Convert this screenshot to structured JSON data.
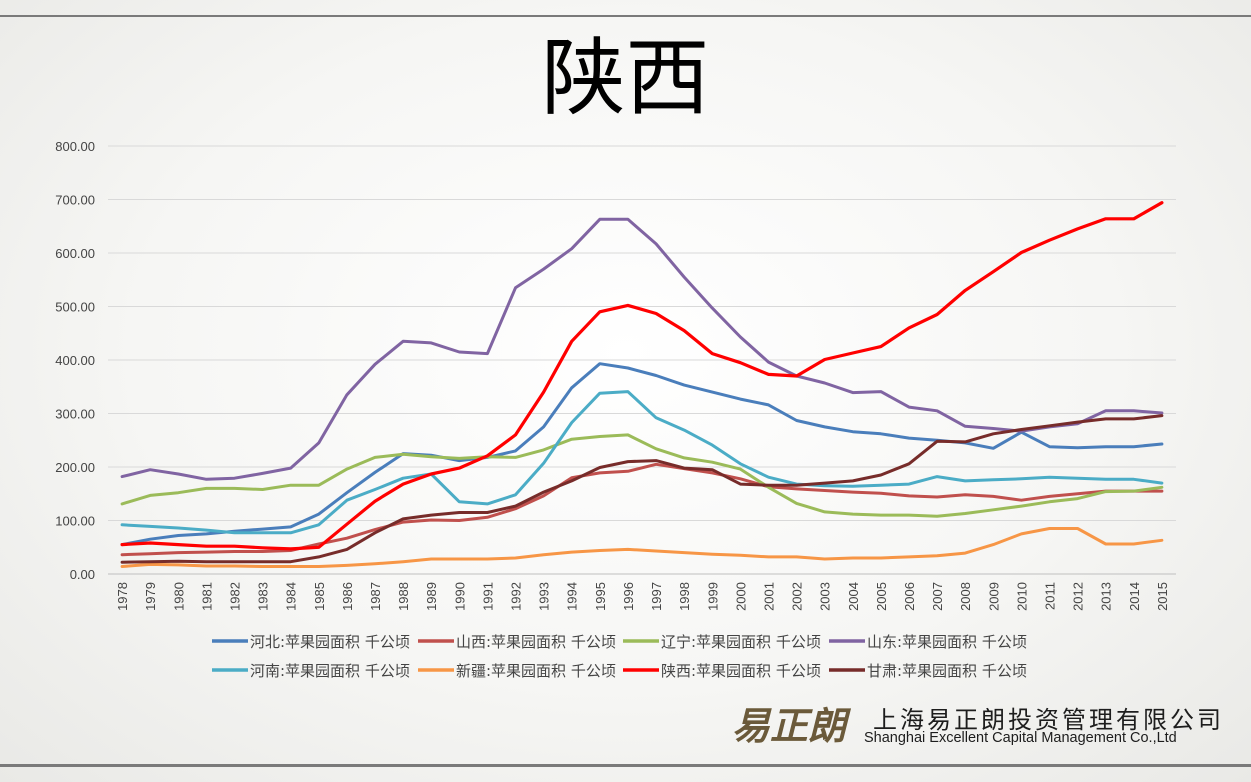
{
  "page_title": "陕西",
  "company": {
    "logo_text": "易正朗",
    "name_cn": "上海易正朗投资管理有限公司",
    "name_en": "Shanghai Excellent Capital Management Co.,Ltd"
  },
  "chart_data": {
    "type": "line",
    "title": "陕西",
    "xlabel": "",
    "ylabel": "",
    "ylim": [
      0,
      800
    ],
    "yticks": [
      "0.00",
      "100.00",
      "200.00",
      "300.00",
      "400.00",
      "500.00",
      "600.00",
      "700.00",
      "800.00"
    ],
    "grid": true,
    "legend_position": "bottom",
    "categories": [
      "1978",
      "1979",
      "1980",
      "1981",
      "1982",
      "1983",
      "1984",
      "1985",
      "1986",
      "1987",
      "1988",
      "1989",
      "1990",
      "1991",
      "1992",
      "1993",
      "1994",
      "1995",
      "1996",
      "1997",
      "1998",
      "1999",
      "2000",
      "2001",
      "2002",
      "2003",
      "2004",
      "2005",
      "2006",
      "2007",
      "2008",
      "2009",
      "2010",
      "2011",
      "2012",
      "2013",
      "2014",
      "2015"
    ],
    "series": [
      {
        "name": "河北:苹果园面积 千公顷",
        "color": "#4a7ebb",
        "values": [
          55,
          65,
          72,
          75,
          80,
          84,
          88,
          112,
          152,
          190,
          225,
          222,
          212,
          218,
          230,
          275,
          348,
          393,
          385,
          371,
          353,
          340,
          327,
          316,
          287,
          275,
          266,
          262,
          254,
          250,
          245,
          235,
          265,
          238,
          236,
          238,
          238,
          243
        ]
      },
      {
        "name": "山西:苹果园面积 千公顷",
        "color": "#c0504d",
        "values": [
          36,
          38,
          40,
          41,
          42,
          42,
          44,
          56,
          67,
          83,
          97,
          101,
          100,
          106,
          122,
          146,
          180,
          189,
          192,
          205,
          197,
          189,
          178,
          163,
          159,
          156,
          153,
          151,
          146,
          144,
          148,
          145,
          138,
          145,
          150,
          155,
          155,
          155
        ]
      },
      {
        "name": "辽宁:苹果园面积 千公顷",
        "color": "#9bbb59",
        "values": [
          131,
          147,
          152,
          160,
          160,
          158,
          166,
          166,
          196,
          218,
          224,
          219,
          216,
          219,
          218,
          232,
          252,
          257,
          260,
          234,
          217,
          209,
          196,
          162,
          132,
          116,
          112,
          110,
          110,
          108,
          113,
          120,
          127,
          135,
          141,
          154,
          155,
          162
        ]
      },
      {
        "name": "山东:苹果园面积 千公顷",
        "color": "#8064a2",
        "values": [
          182,
          195,
          187,
          177,
          179,
          188,
          198,
          245,
          335,
          392,
          435,
          432,
          415,
          412,
          535,
          570,
          608,
          663,
          663,
          617,
          555,
          497,
          443,
          396,
          370,
          357,
          339,
          341,
          312,
          305,
          276,
          272,
          267,
          275,
          281,
          305,
          305,
          301
        ]
      },
      {
        "name": "河南:苹果园面积 千公顷",
        "color": "#4bacc6",
        "values": [
          92,
          89,
          86,
          82,
          77,
          77,
          77,
          92,
          138,
          158,
          179,
          187,
          135,
          131,
          148,
          207,
          283,
          338,
          341,
          292,
          269,
          241,
          206,
          181,
          168,
          165,
          164,
          166,
          168,
          182,
          174,
          176,
          178,
          181,
          179,
          177,
          177,
          170
        ]
      },
      {
        "name": "新疆:苹果园面积 千公顷",
        "color": "#f79646",
        "values": [
          14,
          18,
          17,
          15,
          15,
          14,
          14,
          14,
          16,
          19,
          23,
          28,
          28,
          28,
          30,
          36,
          41,
          44,
          46,
          43,
          40,
          37,
          35,
          32,
          32,
          28,
          30,
          30,
          32,
          34,
          39,
          55,
          75,
          85,
          85,
          56,
          56,
          63
        ]
      },
      {
        "name": "陕西:苹果园面积 千公顷",
        "color": "#ff0000",
        "values": [
          55,
          58,
          55,
          52,
          52,
          49,
          47,
          50,
          93,
          136,
          168,
          187,
          198,
          221,
          260,
          340,
          435,
          490,
          502,
          487,
          455,
          412,
          395,
          373,
          370,
          401,
          413,
          425,
          460,
          485,
          530,
          565,
          601,
          624,
          645,
          664,
          664,
          694
        ]
      },
      {
        "name": "甘肃:苹果园面积 千公顷",
        "color": "#772c2a",
        "values": [
          22,
          23,
          24,
          23,
          23,
          23,
          23,
          32,
          46,
          77,
          103,
          110,
          115,
          115,
          127,
          153,
          174,
          199,
          210,
          212,
          198,
          195,
          168,
          166,
          166,
          170,
          174,
          185,
          206,
          248,
          247,
          262,
          270,
          277,
          284,
          290,
          290,
          296
        ]
      }
    ]
  }
}
